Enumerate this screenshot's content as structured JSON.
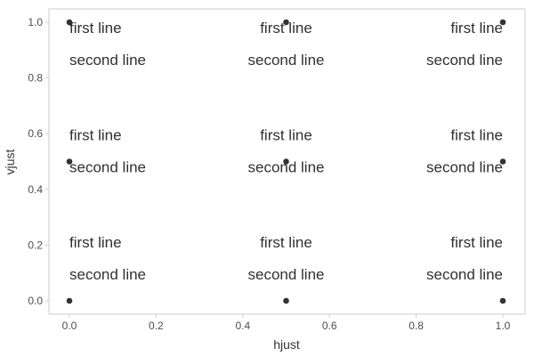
{
  "chart_data": {
    "type": "scatter",
    "xlabel": "hjust",
    "ylabel": "vjust",
    "xlim": [
      -0.05,
      1.05
    ],
    "ylim": [
      -0.05,
      1.05
    ],
    "x_ticks": [
      0.0,
      0.2,
      0.4,
      0.6,
      0.8,
      1.0
    ],
    "y_ticks": [
      0.0,
      0.2,
      0.4,
      0.6,
      0.8,
      1.0
    ],
    "x_tick_labels": [
      "0.0",
      "0.2",
      "0.4",
      "0.6",
      "0.8",
      "1.0"
    ],
    "y_tick_labels": [
      "0.0",
      "0.2",
      "0.4",
      "0.6",
      "0.8",
      "1.0"
    ],
    "grid": false,
    "points": [
      {
        "x": 0.0,
        "y": 0.0,
        "label_lines": [
          "first line",
          "second line"
        ]
      },
      {
        "x": 0.5,
        "y": 0.0,
        "label_lines": [
          "first line",
          "second line"
        ]
      },
      {
        "x": 1.0,
        "y": 0.0,
        "label_lines": [
          "first line",
          "second line"
        ]
      },
      {
        "x": 0.0,
        "y": 0.5,
        "label_lines": [
          "first line",
          "second line"
        ]
      },
      {
        "x": 0.5,
        "y": 0.5,
        "label_lines": [
          "first line",
          "second line"
        ]
      },
      {
        "x": 1.0,
        "y": 0.5,
        "label_lines": [
          "first line",
          "second line"
        ]
      },
      {
        "x": 0.0,
        "y": 1.0,
        "label_lines": [
          "first line",
          "second line"
        ]
      },
      {
        "x": 0.5,
        "y": 1.0,
        "label_lines": [
          "first line",
          "second line"
        ]
      },
      {
        "x": 1.0,
        "y": 1.0,
        "label_lines": [
          "first line",
          "second line"
        ]
      }
    ],
    "colors": {
      "point": "#333333",
      "text": "#303030",
      "panel_border": "#d9d9d9",
      "axis_tick": "#cccccc"
    }
  }
}
